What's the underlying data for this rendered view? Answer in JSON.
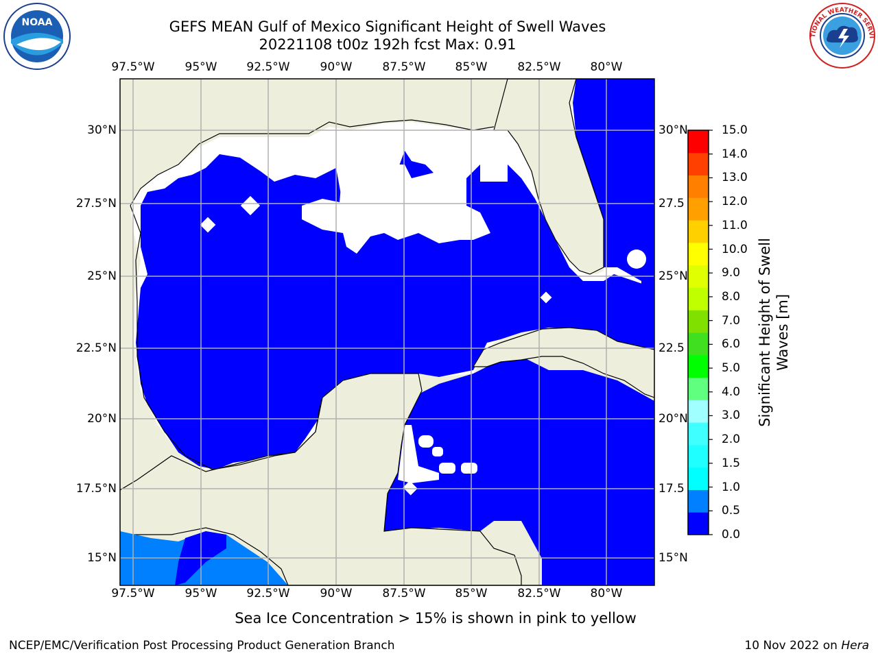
{
  "title_line1": "GEFS MEAN Gulf of Mexico Significant Height of Swell Waves",
  "title_line2": "20221108 t00z 192h fcst   Max: 0.91",
  "lon_ticks": [
    "97.5°W",
    "95°W",
    "92.5°W",
    "90°W",
    "87.5°W",
    "85°W",
    "82.5°W",
    "80°W"
  ],
  "lat_ticks_left": [
    "30°N",
    "27.5°N",
    "25°N",
    "22.5°N",
    "20°N",
    "17.5°N",
    "15°N"
  ],
  "lat_ticks_right": [
    "30°N",
    "27.5",
    "25°N",
    "22.5",
    "20°N",
    "17.5",
    "15°N"
  ],
  "colorbar": {
    "label_line1": "Significant Height of Swell",
    "label_line2": "Waves [m]",
    "ticks": [
      "0.0",
      "0.5",
      "1.0",
      "1.5",
      "2.0",
      "3.0",
      "4.0",
      "5.0",
      "6.0",
      "7.0",
      "8.0",
      "9.0",
      "10.0",
      "11.0",
      "12.0",
      "13.0",
      "14.0",
      "15.0"
    ],
    "colors": [
      "#0000ff",
      "#0080ff",
      "#00ffff",
      "#20ffff",
      "#40ffff",
      "#a0ffff",
      "#60ff80",
      "#00ff00",
      "#40e020",
      "#80e000",
      "#c0ff00",
      "#e0ff00",
      "#ffff00",
      "#ffd000",
      "#ffa000",
      "#ff8000",
      "#ff4000",
      "#ff0000"
    ]
  },
  "colors": {
    "land": "#eeeedd",
    "ocean_low": "#0000ff",
    "ocean_mid": "#0080ff",
    "gridline": "#b0b0b0"
  },
  "logos": {
    "noaa": "NOAA",
    "nws": "NATIONAL WEATHER SERVICE"
  },
  "note": "Sea Ice Concentration > 15% is shown in pink to yellow",
  "footer_left": "NCEP/EMC/Verification Post Processing Product Generation Branch",
  "footer_right_prefix": "10 Nov 2022 on ",
  "footer_right_host": "Hera"
}
